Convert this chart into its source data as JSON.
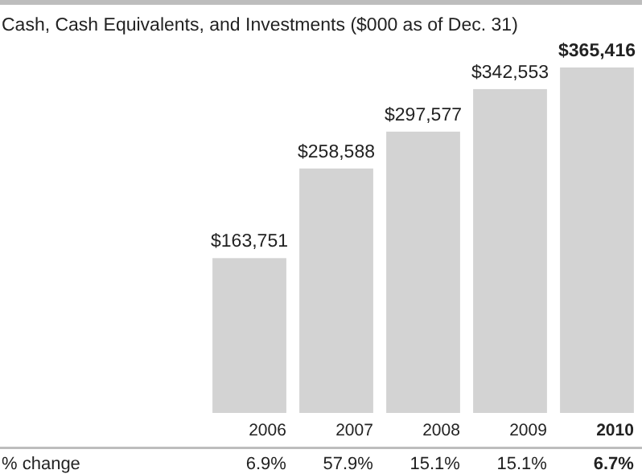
{
  "chart_data": {
    "type": "bar",
    "title": "Cash, Cash Equivalents, and Investments ($000 as of Dec. 31)",
    "categories": [
      "2006",
      "2007",
      "2008",
      "2009",
      "2010"
    ],
    "values": [
      163751,
      258588,
      297577,
      342553,
      365416
    ],
    "value_labels": [
      "$163,751",
      "$258,588",
      "$297,577",
      "$342,553",
      "$365,416"
    ],
    "color": "#d3d3d3",
    "annotations": [
      "% change",
      "6.9%",
      "57.9%",
      "15.1%",
      "15.1%",
      "6.7%"
    ]
  }
}
